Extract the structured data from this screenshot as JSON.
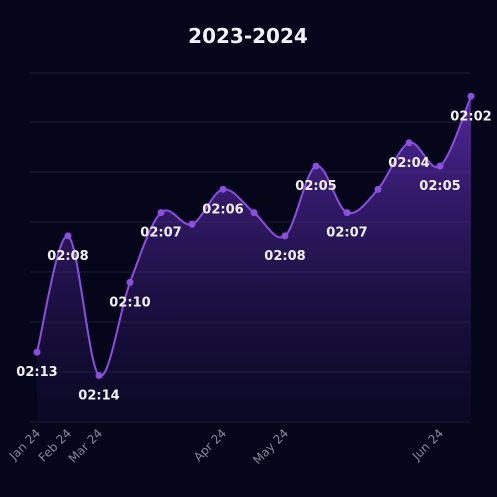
{
  "chart_data": {
    "type": "line",
    "title": "2023-2024",
    "categories": [
      "Jan 24",
      "Feb 24",
      "Mar 24",
      null,
      null,
      null,
      "Apr 24",
      null,
      "May 24",
      null,
      null,
      null,
      null,
      "Jun 24",
      null
    ],
    "values": [
      133,
      128,
      134,
      130,
      127,
      127.5,
      126,
      127,
      128,
      125,
      127,
      126,
      124,
      125,
      122
    ],
    "value_labels": [
      "02:13",
      "02:08",
      "02:14",
      "02:10",
      "02:07",
      null,
      "02:06",
      null,
      "02:08",
      "02:05",
      "02:07",
      null,
      "02:04",
      "02:05",
      "02:02"
    ],
    "color": "#8b4fe0",
    "ylim": [
      136,
      121
    ],
    "inverted": true
  }
}
